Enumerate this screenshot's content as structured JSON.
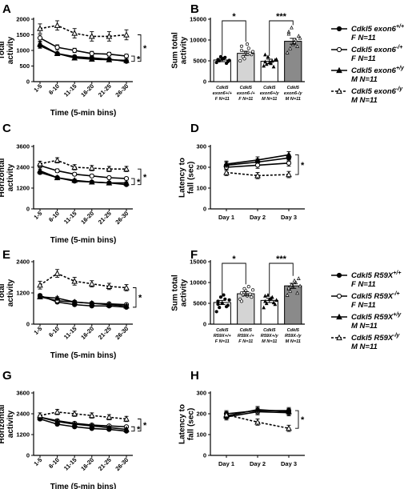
{
  "chart_data": [
    {
      "panel": "A",
      "type": "line",
      "ylabel": "Total\nactivity",
      "xlabel": "Time (5-min bins)",
      "categories": [
        "1-5",
        "6-10",
        "11-15",
        "16-20",
        "21-25",
        "26-30"
      ],
      "ylim": [
        0,
        2000
      ],
      "yticks": [
        0,
        500,
        1000,
        1500,
        2000
      ],
      "series": [
        {
          "name": "Cdkl5 exon6+/+ F N=11",
          "values": [
            1150,
            900,
            800,
            760,
            720,
            650
          ],
          "err": [
            80,
            50,
            40,
            40,
            40,
            40
          ]
        },
        {
          "name": "Cdkl5 exon6-/+ F N=11",
          "values": [
            1400,
            1100,
            1000,
            900,
            880,
            820
          ],
          "err": [
            100,
            80,
            70,
            70,
            60,
            60
          ]
        },
        {
          "name": "Cdkl5 exon6+/y M N=11",
          "values": [
            1200,
            900,
            760,
            720,
            700,
            680
          ],
          "err": [
            80,
            50,
            40,
            40,
            40,
            40
          ]
        },
        {
          "name": "Cdkl5 exon6-/y M N=11",
          "values": [
            1700,
            1800,
            1550,
            1450,
            1450,
            1500
          ],
          "err": [
            150,
            150,
            150,
            150,
            150,
            160
          ]
        }
      ],
      "annotations": [
        "*",
        "*"
      ]
    },
    {
      "panel": "B",
      "type": "bar",
      "ylabel": "Sum total\nactivity",
      "categories": [
        "Cdkl5 exon6+/+ F N=11",
        "Cdkl5 exon6-/+ F N=11",
        "Cdkl5 exon6+/y M N=11",
        "Cdkl5 exon6-/y M N=11"
      ],
      "tick_lines": [
        [
          "Cdkl5",
          "exon6+/+",
          "F N=11"
        ],
        [
          "Cdkl5",
          "exon6-/+",
          "F N=11"
        ],
        [
          "Cdkl5",
          "exon6+/y",
          "M N=11"
        ],
        [
          "Cdkl5",
          "exon6-/y",
          "M N=11"
        ]
      ],
      "values": [
        5200,
        6800,
        4900,
        9700
      ],
      "err": [
        400,
        500,
        500,
        700
      ],
      "points": [
        [
          4600,
          5000,
          5400,
          5800,
          4800,
          5200,
          6000,
          5600,
          4400,
          5100,
          5300
        ],
        [
          5000,
          6000,
          7000,
          8000,
          6500,
          7500,
          5500,
          9000,
          6800,
          7200,
          8500
        ],
        [
          3800,
          4200,
          4600,
          5000,
          5200,
          4800,
          6000,
          4400,
          3600,
          5400,
          6500
        ],
        [
          7000,
          8000,
          9000,
          10000,
          11000,
          12000,
          13000,
          9500,
          8500,
          10500,
          11500
        ]
      ],
      "ylim": [
        0,
        15000
      ],
      "yticks": [
        0,
        5000,
        10000,
        15000
      ],
      "brackets": [
        {
          "from": 0,
          "to": 1,
          "label": "*"
        },
        {
          "from": 2,
          "to": 3,
          "label": "***"
        }
      ]
    },
    {
      "panel": "C",
      "type": "line",
      "ylabel": "Horizontal\nactivity",
      "xlabel": "Time (5-min bins)",
      "categories": [
        "1-5",
        "6-10",
        "11-15",
        "16-20",
        "21-25",
        "26-30"
      ],
      "ylim": [
        0,
        3600
      ],
      "yticks": [
        0,
        1200,
        2400,
        3600
      ],
      "series": [
        {
          "name": "Cdkl5 exon6+/+ F N=11",
          "values": [
            2100,
            1800,
            1600,
            1550,
            1500,
            1400
          ],
          "err": [
            100,
            80,
            70,
            60,
            60,
            60
          ]
        },
        {
          "name": "Cdkl5 exon6-/+ F N=11",
          "values": [
            2500,
            2200,
            2000,
            1900,
            1800,
            1750
          ],
          "err": [
            120,
            100,
            90,
            90,
            80,
            80
          ]
        },
        {
          "name": "Cdkl5 exon6+/y M N=11",
          "values": [
            2200,
            1800,
            1650,
            1550,
            1500,
            1500
          ],
          "err": [
            100,
            80,
            70,
            60,
            60,
            60
          ]
        },
        {
          "name": "Cdkl5 exon6-/y M N=11",
          "values": [
            2600,
            2800,
            2400,
            2350,
            2300,
            2300
          ],
          "err": [
            150,
            150,
            150,
            150,
            150,
            150
          ]
        }
      ],
      "annotations": [
        "*",
        "*"
      ]
    },
    {
      "panel": "D",
      "type": "line",
      "ylabel": "Latency to\nfall (sec)",
      "categories": [
        "Day 1",
        "Day 2",
        "Day 3"
      ],
      "ylim": [
        0,
        300
      ],
      "yticks": [
        0,
        100,
        200,
        300
      ],
      "series": [
        {
          "name": "Cdkl5 exon6+/+ F N=11",
          "values": [
            210,
            225,
            245
          ],
          "err": [
            15,
            15,
            15
          ]
        },
        {
          "name": "Cdkl5 exon6-/+ F N=11",
          "values": [
            200,
            210,
            220
          ],
          "err": [
            15,
            15,
            15
          ]
        },
        {
          "name": "Cdkl5 exon6+/y M N=11",
          "values": [
            215,
            235,
            260
          ],
          "err": [
            15,
            15,
            15
          ]
        },
        {
          "name": "Cdkl5 exon6-/y M N=11",
          "values": [
            175,
            160,
            165
          ],
          "err": [
            15,
            15,
            15
          ]
        }
      ],
      "annotations": [
        "*"
      ]
    },
    {
      "panel": "E",
      "type": "line",
      "ylabel": "Total\nactivity",
      "xlabel": "Time (5-min bins)",
      "categories": [
        "1-5",
        "6-10",
        "11-15",
        "16-20",
        "21-25",
        "26-30"
      ],
      "ylim": [
        0,
        2400
      ],
      "yticks": [
        0,
        1200,
        2400
      ],
      "series": [
        {
          "name": "Cdkl5 R59X+/+ F N=11",
          "values": [
            1100,
            850,
            750,
            700,
            700,
            650
          ],
          "err": [
            60,
            50,
            40,
            40,
            40,
            40
          ]
        },
        {
          "name": "Cdkl5 R59X-/+ F N=11",
          "values": [
            1050,
            900,
            850,
            800,
            780,
            750
          ],
          "err": [
            60,
            50,
            50,
            50,
            50,
            50
          ]
        },
        {
          "name": "Cdkl5 R59X+/y M N=11",
          "values": [
            1050,
            1000,
            850,
            800,
            750,
            700
          ],
          "err": [
            60,
            50,
            50,
            50,
            50,
            50
          ]
        },
        {
          "name": "Cdkl5 R59X-/y M N=11",
          "values": [
            1500,
            1950,
            1650,
            1550,
            1450,
            1400
          ],
          "err": [
            150,
            150,
            150,
            120,
            120,
            120
          ]
        }
      ],
      "annotations": [
        "*"
      ]
    },
    {
      "panel": "F",
      "type": "bar",
      "ylabel": "Sum total\nactivity",
      "categories": [
        "Cdkl5 R59X+/+ F N=11",
        "Cdkl5 R59X-/+ F N=11",
        "Cdkl5 R59X+/y M N=11",
        "Cdkl5 R59X-/y M N=11"
      ],
      "tick_lines": [
        [
          "Cdkl5",
          "R59X+/+",
          "F N=11"
        ],
        [
          "Cdkl5",
          "R59X-/+",
          "F N=11"
        ],
        [
          "Cdkl5",
          "R59X+/y",
          "M N=11"
        ],
        [
          "Cdkl5",
          "R59X-/y",
          "M N=11"
        ]
      ],
      "values": [
        5200,
        7300,
        5700,
        9200
      ],
      "err": [
        500,
        500,
        500,
        600
      ],
      "points": [
        [
          3000,
          4000,
          5000,
          6000,
          4500,
          5500,
          6500,
          7000,
          4200,
          5800,
          4800
        ],
        [
          6000,
          7000,
          8000,
          9000,
          6500,
          7500,
          8500,
          6800,
          7200,
          8200,
          5500
        ],
        [
          4000,
          5000,
          6000,
          6500,
          4800,
          5500,
          7000,
          6200,
          5200,
          5800,
          6800
        ],
        [
          7000,
          8000,
          9000,
          10000,
          11000,
          8500,
          9500,
          10500,
          7500,
          9200,
          8800
        ]
      ],
      "ylim": [
        0,
        15000
      ],
      "yticks": [
        0,
        5000,
        10000,
        15000
      ],
      "brackets": [
        {
          "from": 0,
          "to": 1,
          "label": "*"
        },
        {
          "from": 2,
          "to": 3,
          "label": "***"
        }
      ]
    },
    {
      "panel": "G",
      "type": "line",
      "ylabel": "Horizontal\nactivity",
      "xlabel": "Time (5-min bins)",
      "categories": [
        "1-5",
        "6-10",
        "11-15",
        "16-20",
        "21-25",
        "26-30"
      ],
      "ylim": [
        0,
        3600
      ],
      "yticks": [
        0,
        1200,
        2400,
        3600
      ],
      "series": [
        {
          "name": "Cdkl5 R59X+/+ F N=11",
          "values": [
            2100,
            1800,
            1650,
            1550,
            1500,
            1400
          ],
          "err": [
            100,
            80,
            70,
            60,
            60,
            60
          ]
        },
        {
          "name": "Cdkl5 R59X-/+ F N=11",
          "values": [
            2200,
            2000,
            1850,
            1750,
            1700,
            1650
          ],
          "err": [
            100,
            90,
            80,
            80,
            80,
            80
          ]
        },
        {
          "name": "Cdkl5 R59X+/y M N=11",
          "values": [
            2200,
            1950,
            1800,
            1700,
            1600,
            1500
          ],
          "err": [
            100,
            90,
            80,
            80,
            80,
            80
          ]
        },
        {
          "name": "Cdkl5 R59X-/y M N=11",
          "values": [
            2300,
            2500,
            2400,
            2300,
            2200,
            2100
          ],
          "err": [
            150,
            150,
            150,
            150,
            150,
            150
          ]
        }
      ],
      "annotations": [
        "*",
        "*"
      ]
    },
    {
      "panel": "H",
      "type": "line",
      "ylabel": "Latency to\nfall (sec)",
      "categories": [
        "Day 1",
        "Day 2",
        "Day 3"
      ],
      "ylim": [
        0,
        300
      ],
      "yticks": [
        0,
        100,
        200,
        300
      ],
      "series": [
        {
          "name": "Cdkl5 R59X+/+ F N=11",
          "values": [
            200,
            215,
            215
          ],
          "err": [
            15,
            15,
            15
          ]
        },
        {
          "name": "Cdkl5 R59X-/+ F N=11",
          "values": [
            185,
            210,
            205
          ],
          "err": [
            15,
            15,
            15
          ]
        },
        {
          "name": "Cdkl5 R59X+/y M N=11",
          "values": [
            190,
            220,
            210
          ],
          "err": [
            15,
            15,
            15
          ]
        },
        {
          "name": "Cdkl5 R59X-/y M N=11",
          "values": [
            195,
            160,
            130
          ],
          "err": [
            15,
            15,
            15
          ]
        }
      ],
      "annotations": [
        "*"
      ]
    }
  ],
  "legends": [
    {
      "entries": [
        {
          "gene": "Cdkl5 exon6",
          "sup": "+/+",
          "group": "F N=11"
        },
        {
          "gene": "Cdkl5 exon6",
          "sup": "-/+",
          "group": "F N=11"
        },
        {
          "gene": "Cdkl5 exon6",
          "sup": "+/y",
          "group": "M N=11"
        },
        {
          "gene": "Cdkl5 exon6",
          "sup": "-/y",
          "group": "M N=11"
        }
      ]
    },
    {
      "entries": [
        {
          "gene": "Cdkl5 R59X",
          "sup": "+/+",
          "group": "F N=11"
        },
        {
          "gene": "Cdkl5 R59X",
          "sup": "-/+",
          "group": "F N=11"
        },
        {
          "gene": "Cdkl5 R59X",
          "sup": "+/y",
          "group": "M N=11"
        },
        {
          "gene": "Cdkl5 R59X",
          "sup": "-/y",
          "group": "M N=11"
        }
      ]
    }
  ],
  "styles": {
    "colors": {
      "ink": "#000000",
      "wt_bar": "#ffffff",
      "het_bar": "#d4d4d4",
      "hemi_bar": "#ffffff",
      "ko_bar": "#8a8a8a"
    },
    "markers": [
      "filled-circle",
      "open-circle",
      "filled-triangle",
      "open-triangle"
    ],
    "dashes": [
      "solid",
      "solid",
      "solid",
      "dashed"
    ]
  }
}
